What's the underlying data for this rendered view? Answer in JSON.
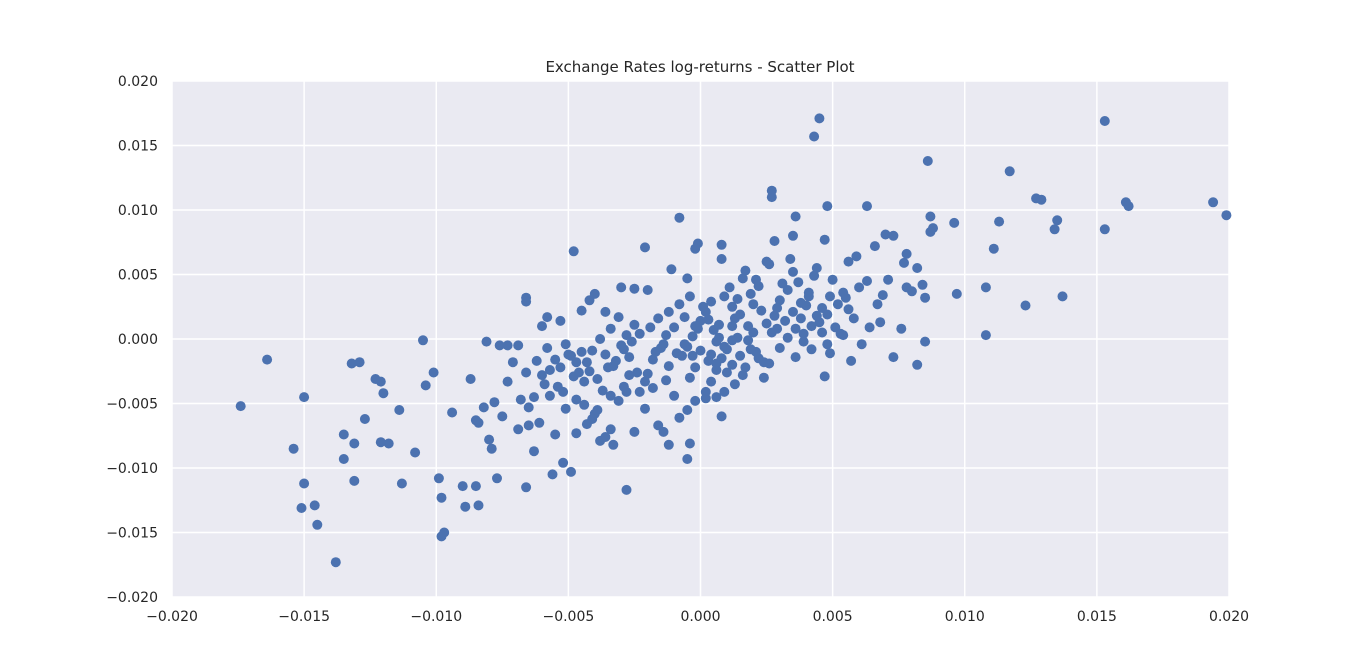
{
  "chart_data": {
    "type": "scatter",
    "title": "Exchange Rates log-returns - Scatter Plot",
    "xlabel": "",
    "ylabel": "",
    "xlim": [
      -0.02,
      0.02
    ],
    "ylim": [
      -0.02,
      0.02
    ],
    "x_ticks": [
      "−0.020",
      "−0.015",
      "−0.010",
      "−0.005",
      "0.000",
      "0.005",
      "0.010",
      "0.015",
      "0.020"
    ],
    "y_ticks": [
      "0.020",
      "0.015",
      "0.010",
      "0.005",
      "0.000",
      "−0.005",
      "−0.010",
      "−0.015",
      "−0.020"
    ],
    "grid": true,
    "colors": {
      "point": "#4c72b0",
      "plot_bg": "#eaeaf2",
      "grid": "#ffffff"
    },
    "points": [
      [
        0.0045,
        0.0171
      ],
      [
        0.0043,
        0.0157
      ],
      [
        0.0153,
        0.0169
      ],
      [
        0.0117,
        0.013
      ],
      [
        0.0086,
        0.0138
      ],
      [
        0.0027,
        0.0115
      ],
      [
        0.0027,
        0.011
      ],
      [
        0.0048,
        0.0103
      ],
      [
        0.0063,
        0.0103
      ],
      [
        0.0127,
        0.0109
      ],
      [
        0.0129,
        0.0108
      ],
      [
        0.0161,
        0.0106
      ],
      [
        0.0162,
        0.0103
      ],
      [
        0.0194,
        0.0106
      ],
      [
        0.0199,
        0.0096
      ],
      [
        0.0135,
        0.0092
      ],
      [
        0.0134,
        0.0085
      ],
      [
        0.0153,
        0.0085
      ],
      [
        0.0113,
        0.0091
      ],
      [
        0.0096,
        0.009
      ],
      [
        0.0087,
        0.0095
      ],
      [
        0.0088,
        0.0086
      ],
      [
        0.0087,
        0.0083
      ],
      [
        0.007,
        0.0081
      ],
      [
        0.0073,
        0.008
      ],
      [
        0.0036,
        0.0095
      ],
      [
        0.0035,
        0.008
      ],
      [
        -0.0008,
        0.0094
      ],
      [
        0.0047,
        0.0077
      ],
      [
        0.0028,
        0.0076
      ],
      [
        0.0111,
        0.007
      ],
      [
        0.0108,
        0.004
      ],
      [
        0.0137,
        0.0033
      ],
      [
        0.0097,
        0.0035
      ],
      [
        0.0123,
        0.0026
      ],
      [
        0.0108,
        0.0003
      ],
      [
        0.0085,
        0.0032
      ],
      [
        0.0084,
        0.0042
      ],
      [
        0.0082,
        0.0055
      ],
      [
        0.0078,
        0.0066
      ],
      [
        0.0077,
        0.0059
      ],
      [
        0.0078,
        0.004
      ],
      [
        0.008,
        0.0037
      ],
      [
        0.0085,
        -0.0002
      ],
      [
        0.0082,
        -0.002
      ],
      [
        0.0073,
        -0.0014
      ],
      [
        0.0076,
        0.0008
      ],
      [
        0.0068,
        0.0013
      ],
      [
        0.0069,
        0.0034
      ],
      [
        0.0071,
        0.0046
      ],
      [
        0.0066,
        0.0072
      ],
      [
        0.0059,
        0.0064
      ],
      [
        0.0056,
        0.006
      ],
      [
        0.0063,
        0.0045
      ],
      [
        0.006,
        0.004
      ],
      [
        0.0054,
        0.0036
      ],
      [
        0.005,
        0.0046
      ],
      [
        0.0049,
        0.0033
      ],
      [
        0.0056,
        0.0023
      ],
      [
        0.0053,
        0.0004
      ],
      [
        0.0057,
        -0.0017
      ],
      [
        0.0048,
        -0.0004
      ],
      [
        0.0047,
        -0.0029
      ],
      [
        0.0046,
        0.0024
      ],
      [
        0.0044,
        0.0055
      ],
      [
        0.0043,
        0.0049
      ],
      [
        0.0041,
        0.0036
      ],
      [
        0.004,
        0.0026
      ],
      [
        0.0038,
        0.0016
      ],
      [
        0.0036,
        0.0008
      ],
      [
        0.0034,
        0.0062
      ],
      [
        0.0035,
        0.0052
      ],
      [
        0.0031,
        0.0043
      ],
      [
        0.003,
        0.003
      ],
      [
        0.0028,
        0.0018
      ],
      [
        0.0026,
        0.0058
      ],
      [
        0.0025,
        0.006
      ],
      [
        0.0022,
        0.0041
      ],
      [
        0.002,
        0.0027
      ],
      [
        0.0018,
        0.001
      ],
      [
        0.0016,
        0.0047
      ],
      [
        0.0017,
        0.0053
      ],
      [
        0.0014,
        0.0031
      ],
      [
        0.0013,
        0.0016
      ],
      [
        0.0012,
        -0.0001
      ],
      [
        0.001,
        -0.0008
      ],
      [
        0.0008,
        -0.0015
      ],
      [
        0.0006,
        -0.0024
      ],
      [
        0.0004,
        -0.0033
      ],
      [
        0.0002,
        -0.0041
      ],
      [
        0.0008,
        0.0073
      ],
      [
        0.0008,
        0.0062
      ],
      [
        -0.0001,
        0.0074
      ],
      [
        -0.0002,
        0.007
      ],
      [
        -0.0005,
        0.0047
      ],
      [
        -0.0011,
        0.0054
      ],
      [
        -0.0021,
        0.0071
      ],
      [
        -0.0048,
        0.0068
      ],
      [
        -0.002,
        0.0038
      ],
      [
        -0.0025,
        0.0039
      ],
      [
        -0.003,
        0.004
      ],
      [
        -0.0036,
        0.0021
      ],
      [
        -0.004,
        0.0035
      ],
      [
        -0.0042,
        0.003
      ],
      [
        -0.0045,
        0.0022
      ],
      [
        -0.0053,
        0.0014
      ],
      [
        -0.0058,
        0.0017
      ],
      [
        -0.006,
        0.001
      ],
      [
        -0.0066,
        0.0032
      ],
      [
        -0.0066,
        0.0029
      ],
      [
        -0.0076,
        -0.0005
      ],
      [
        -0.0081,
        -0.0002
      ],
      [
        -0.0073,
        -0.0005
      ],
      [
        -0.0069,
        -0.0005
      ],
      [
        -0.0062,
        -0.0017
      ],
      [
        -0.0059,
        -0.0035
      ],
      [
        -0.0057,
        -0.0024
      ],
      [
        -0.0054,
        -0.0037
      ],
      [
        -0.0052,
        -0.0041
      ],
      [
        -0.005,
        -0.0012
      ],
      [
        -0.0047,
        -0.0018
      ],
      [
        -0.0045,
        -0.001
      ],
      [
        -0.0042,
        -0.0025
      ],
      [
        -0.0039,
        -0.0031
      ],
      [
        -0.0036,
        -0.0012
      ],
      [
        -0.0033,
        -0.0021
      ],
      [
        -0.003,
        -0.0005
      ],
      [
        -0.0027,
        -0.0014
      ],
      [
        -0.0024,
        -0.0026
      ],
      [
        -0.0021,
        -0.0033
      ],
      [
        -0.0018,
        -0.0016
      ],
      [
        -0.0015,
        -0.0007
      ],
      [
        -0.0012,
        -0.0021
      ],
      [
        -0.0009,
        -0.0011
      ],
      [
        -0.0006,
        -0.0004
      ],
      [
        -0.0003,
        -0.0013
      ],
      [
        0.0,
        -0.0009
      ],
      [
        0.0003,
        -0.0017
      ],
      [
        0.0006,
        -0.0002
      ],
      [
        0.0009,
        -0.0006
      ],
      [
        0.0012,
        -0.002
      ],
      [
        0.0015,
        -0.0013
      ],
      [
        0.0018,
        -0.0001
      ],
      [
        0.0021,
        -0.001
      ],
      [
        0.0024,
        -0.0018
      ],
      [
        0.0027,
        0.0005
      ],
      [
        0.003,
        -0.0007
      ],
      [
        0.0033,
        0.0001
      ],
      [
        0.0036,
        -0.0014
      ],
      [
        0.0039,
        -0.0002
      ],
      [
        0.0042,
        -0.0008
      ],
      [
        0.0045,
        0.0013
      ],
      [
        0.0048,
        0.0019
      ],
      [
        0.0051,
        0.0009
      ],
      [
        0.0054,
        0.0003
      ],
      [
        -0.0004,
        0.0033
      ],
      [
        -0.0008,
        0.0027
      ],
      [
        -0.0012,
        0.0021
      ],
      [
        -0.0016,
        0.0016
      ],
      [
        -0.0019,
        0.0009
      ],
      [
        -0.0023,
        0.0004
      ],
      [
        -0.0026,
        -0.0002
      ],
      [
        -0.0029,
        -0.0008
      ],
      [
        -0.0032,
        -0.0017
      ],
      [
        -0.0035,
        -0.0022
      ],
      [
        0.0001,
        0.0025
      ],
      [
        0.0003,
        0.0015
      ],
      [
        -0.0001,
        0.0008
      ],
      [
        -0.0003,
        0.0002
      ],
      [
        -0.0005,
        -0.0006
      ],
      [
        -0.0007,
        -0.0013
      ],
      [
        -0.0002,
        -0.0022
      ],
      [
        -0.0004,
        -0.003
      ],
      [
        0.0005,
        0.0007
      ],
      [
        0.0007,
        0.0001
      ],
      [
        -0.0006,
        0.0017
      ],
      [
        -0.001,
        0.0009
      ],
      [
        -0.0013,
        0.0003
      ],
      [
        -0.0014,
        -0.0004
      ],
      [
        -0.0017,
        -0.001
      ],
      [
        -0.0087,
        -0.0031
      ],
      [
        -0.0082,
        -0.0053
      ],
      [
        -0.0078,
        -0.0049
      ],
      [
        -0.0073,
        -0.0033
      ],
      [
        -0.0068,
        -0.0047
      ],
      [
        -0.0065,
        -0.0053
      ],
      [
        -0.0061,
        -0.0065
      ],
      [
        -0.0057,
        -0.0044
      ],
      [
        -0.0055,
        -0.0074
      ],
      [
        -0.0051,
        -0.0054
      ],
      [
        -0.0047,
        -0.0047
      ],
      [
        -0.0043,
        -0.0066
      ],
      [
        -0.004,
        -0.0058
      ],
      [
        -0.0038,
        -0.0079
      ],
      [
        -0.0034,
        -0.007
      ],
      [
        -0.0031,
        -0.0048
      ],
      [
        -0.0028,
        -0.0041
      ],
      [
        -0.0025,
        -0.0072
      ],
      [
        -0.0021,
        -0.0054
      ],
      [
        -0.0018,
        -0.0038
      ],
      [
        -0.0014,
        -0.0072
      ],
      [
        -0.0012,
        -0.0082
      ],
      [
        -0.0008,
        -0.0061
      ],
      [
        -0.0005,
        -0.0055
      ],
      [
        -0.0002,
        -0.0048
      ],
      [
        0.0002,
        -0.0046
      ],
      [
        0.0006,
        -0.0045
      ],
      [
        0.0009,
        -0.0041
      ],
      [
        0.0008,
        -0.006
      ],
      [
        -0.0005,
        -0.0093
      ],
      [
        -0.0004,
        -0.0081
      ],
      [
        -0.0052,
        -0.0096
      ],
      [
        -0.0049,
        -0.0103
      ],
      [
        -0.0056,
        -0.0105
      ],
      [
        -0.0066,
        -0.0115
      ],
      [
        -0.0065,
        -0.0067
      ],
      [
        -0.0069,
        -0.007
      ],
      [
        -0.0075,
        -0.006
      ],
      [
        -0.008,
        -0.0078
      ],
      [
        -0.0079,
        -0.0085
      ],
      [
        -0.0085,
        -0.0063
      ],
      [
        -0.0084,
        -0.0065
      ],
      [
        -0.009,
        -0.0114
      ],
      [
        -0.0085,
        -0.0114
      ],
      [
        -0.0084,
        -0.0129
      ],
      [
        -0.0089,
        -0.013
      ],
      [
        -0.0098,
        -0.0123
      ],
      [
        -0.0099,
        -0.0108
      ],
      [
        -0.0094,
        -0.0057
      ],
      [
        -0.0101,
        -0.0026
      ],
      [
        -0.0104,
        -0.0036
      ],
      [
        -0.0105,
        -0.0001
      ],
      [
        -0.0108,
        -0.0088
      ],
      [
        -0.0113,
        -0.0112
      ],
      [
        -0.0114,
        -0.0055
      ],
      [
        -0.0118,
        -0.0081
      ],
      [
        -0.0121,
        -0.008
      ],
      [
        -0.012,
        -0.0042
      ],
      [
        -0.0121,
        -0.0033
      ],
      [
        -0.0123,
        -0.0031
      ],
      [
        -0.0127,
        -0.0062
      ],
      [
        -0.0129,
        -0.0018
      ],
      [
        -0.0132,
        -0.0019
      ],
      [
        -0.0131,
        -0.0081
      ],
      [
        -0.0131,
        -0.011
      ],
      [
        -0.0135,
        -0.0074
      ],
      [
        -0.0135,
        -0.0093
      ],
      [
        -0.0138,
        -0.0173
      ],
      [
        -0.0146,
        -0.0129
      ],
      [
        -0.0145,
        -0.0144
      ],
      [
        -0.015,
        -0.0112
      ],
      [
        -0.0151,
        -0.0131
      ],
      [
        -0.015,
        -0.0045
      ],
      [
        -0.0154,
        -0.0085
      ],
      [
        -0.0164,
        -0.0016
      ],
      [
        -0.0174,
        -0.0052
      ],
      [
        -0.0097,
        -0.015
      ],
      [
        -0.0098,
        -0.0153
      ],
      [
        -0.0077,
        -0.0108
      ],
      [
        -0.0063,
        -0.0087
      ],
      [
        -0.0028,
        -0.0117
      ],
      [
        -0.0016,
        -0.0067
      ],
      [
        -0.0033,
        -0.0082
      ],
      [
        -0.0036,
        -0.0076
      ],
      [
        -0.0044,
        -0.0051
      ],
      [
        -0.0047,
        -0.0073
      ],
      [
        -0.0041,
        -0.0062
      ],
      [
        -0.0039,
        -0.0055
      ],
      [
        -0.0029,
        -0.0037
      ],
      [
        -0.0023,
        -0.0041
      ],
      [
        -0.001,
        -0.0044
      ],
      [
        -0.0013,
        -0.0032
      ],
      [
        -0.002,
        -0.0027
      ],
      [
        -0.0027,
        -0.0028
      ],
      [
        -0.0044,
        -0.0033
      ],
      [
        -0.0048,
        -0.0029
      ],
      [
        -0.0053,
        -0.0022
      ],
      [
        -0.006,
        -0.0028
      ],
      [
        -0.0037,
        -0.004
      ],
      [
        -0.0034,
        -0.0044
      ],
      [
        0.0012,
        0.001
      ],
      [
        0.0014,
        0.0001
      ],
      [
        0.0017,
        -0.0022
      ],
      [
        0.0022,
        -0.0015
      ],
      [
        0.0024,
        -0.003
      ],
      [
        0.0026,
        -0.0019
      ],
      [
        0.0029,
        0.0008
      ],
      [
        0.0032,
        0.0014
      ],
      [
        0.0035,
        0.0021
      ],
      [
        0.0038,
        0.0028
      ],
      [
        0.0041,
        0.0033
      ],
      [
        0.0044,
        0.0018
      ],
      [
        0.0046,
        0.0005
      ],
      [
        0.0049,
        -0.0011
      ],
      [
        0.0052,
        0.0027
      ],
      [
        0.0055,
        0.0032
      ],
      [
        0.0058,
        0.0016
      ],
      [
        0.0061,
        -0.0004
      ],
      [
        0.0064,
        0.0009
      ],
      [
        0.0067,
        0.0027
      ],
      [
        0.0019,
        0.0035
      ],
      [
        0.0021,
        0.0046
      ],
      [
        0.0023,
        0.0022
      ],
      [
        0.0009,
        0.0033
      ],
      [
        0.0011,
        0.004
      ],
      [
        0.0004,
        0.0029
      ],
      [
        0.0002,
        0.0021
      ],
      [
        0.0,
        0.0014
      ],
      [
        -0.0002,
        0.001
      ],
      [
        0.0004,
        -0.0012
      ],
      [
        0.0006,
        -0.0019
      ],
      [
        0.001,
        -0.0026
      ],
      [
        0.0013,
        -0.0035
      ],
      [
        0.0016,
        -0.0028
      ],
      [
        0.0019,
        -0.0008
      ],
      [
        -0.0025,
        0.0011
      ],
      [
        -0.0028,
        0.0003
      ],
      [
        -0.0031,
        0.0017
      ],
      [
        -0.0034,
        0.0008
      ],
      [
        -0.0038,
        0.0
      ],
      [
        -0.0041,
        -0.0009
      ],
      [
        -0.0043,
        -0.0018
      ],
      [
        -0.0046,
        -0.0026
      ],
      [
        -0.0049,
        -0.0013
      ],
      [
        -0.0051,
        -0.0004
      ],
      [
        -0.0055,
        -0.0016
      ],
      [
        -0.0058,
        -0.0007
      ],
      [
        -0.0063,
        -0.0045
      ],
      [
        -0.0066,
        -0.0026
      ],
      [
        -0.0071,
        -0.0018
      ],
      [
        0.0039,
        0.0004
      ],
      [
        0.0042,
        0.001
      ],
      [
        0.0037,
        0.0044
      ],
      [
        0.0033,
        0.0038
      ],
      [
        0.0029,
        0.0024
      ],
      [
        0.0025,
        0.0012
      ],
      [
        0.002,
        0.0005
      ],
      [
        0.0015,
        0.0019
      ],
      [
        0.0012,
        0.0025
      ],
      [
        0.0007,
        0.0011
      ]
    ]
  }
}
